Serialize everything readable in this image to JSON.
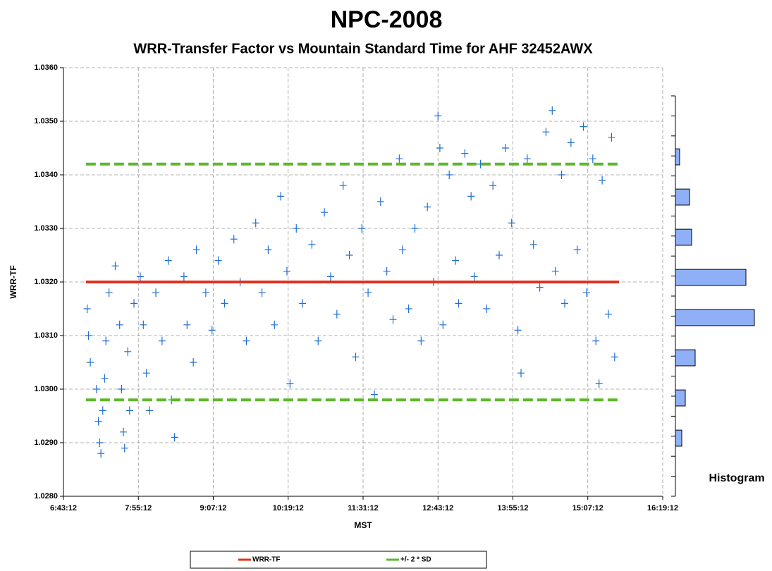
{
  "chart_data": [
    {
      "type": "scatter",
      "title": "NPC-2008",
      "subtitle": "WRR-Transfer Factor vs Mountain Standard Time for AHF 32452AWX",
      "x_label": "MST",
      "y_label": "WRR-TF",
      "xlim": [
        6.72,
        16.32
      ],
      "xticks": [
        {
          "value": 6.72,
          "label": "6:43:12"
        },
        {
          "value": 7.92,
          "label": "7:55:12"
        },
        {
          "value": 9.12,
          "label": "9:07:12"
        },
        {
          "value": 10.32,
          "label": "10:19:12"
        },
        {
          "value": 11.52,
          "label": "11:31:12"
        },
        {
          "value": 12.72,
          "label": "12:43:12"
        },
        {
          "value": 13.92,
          "label": "13:55:12"
        },
        {
          "value": 15.12,
          "label": "15:07:12"
        },
        {
          "value": 16.32,
          "label": "16:19:12"
        }
      ],
      "ylim": [
        1.028,
        1.036
      ],
      "yticks": [
        {
          "value": 1.028,
          "label": "1.0280"
        },
        {
          "value": 1.029,
          "label": "1.0290"
        },
        {
          "value": 1.03,
          "label": "1.0300"
        },
        {
          "value": 1.031,
          "label": "1.0310"
        },
        {
          "value": 1.032,
          "label": "1.0320"
        },
        {
          "value": 1.033,
          "label": "1.0330"
        },
        {
          "value": 1.034,
          "label": "1.0340"
        },
        {
          "value": 1.035,
          "label": "1.0350"
        },
        {
          "value": 1.036,
          "label": "1.0360"
        }
      ],
      "grid": true,
      "points": {
        "color": "#1f6fd1",
        "x": [
          7.1,
          7.12,
          7.15,
          7.25,
          7.28,
          7.3,
          7.32,
          7.35,
          7.38,
          7.4,
          7.45,
          7.55,
          7.62,
          7.65,
          7.68,
          7.7,
          7.75,
          7.78,
          7.85,
          7.95,
          8.0,
          8.05,
          8.1,
          8.2,
          8.3,
          8.4,
          8.45,
          8.5,
          8.65,
          8.7,
          8.8,
          8.85,
          9.0,
          9.1,
          9.2,
          9.3,
          9.45,
          9.55,
          9.65,
          9.8,
          9.9,
          10.0,
          10.1,
          10.2,
          10.3,
          10.35,
          10.45,
          10.55,
          10.7,
          10.8,
          10.9,
          11.0,
          11.1,
          11.2,
          11.3,
          11.4,
          11.5,
          11.6,
          11.7,
          11.8,
          11.9,
          12.0,
          12.1,
          12.15,
          12.25,
          12.35,
          12.45,
          12.55,
          12.65,
          12.72,
          12.75,
          12.8,
          12.9,
          13.0,
          13.05,
          13.15,
          13.25,
          13.3,
          13.4,
          13.5,
          13.6,
          13.7,
          13.8,
          13.9,
          14.0,
          14.05,
          14.15,
          14.25,
          14.35,
          14.45,
          14.55,
          14.6,
          14.7,
          14.75,
          14.85,
          14.95,
          15.05,
          15.1,
          15.2,
          15.25,
          15.3,
          15.35,
          15.45,
          15.5,
          15.55
        ],
        "y": [
          1.0315,
          1.031,
          1.0305,
          1.03,
          1.0294,
          1.029,
          1.0288,
          1.0296,
          1.0302,
          1.0309,
          1.0318,
          1.0323,
          1.0312,
          1.03,
          1.0292,
          1.0289,
          1.0307,
          1.0296,
          1.0316,
          1.0321,
          1.0312,
          1.0303,
          1.0296,
          1.0318,
          1.0309,
          1.0324,
          1.0298,
          1.0291,
          1.0321,
          1.0312,
          1.0305,
          1.0326,
          1.0318,
          1.0311,
          1.0324,
          1.0316,
          1.0328,
          1.032,
          1.0309,
          1.0331,
          1.0318,
          1.0326,
          1.0312,
          1.0336,
          1.0322,
          1.0301,
          1.033,
          1.0316,
          1.0327,
          1.0309,
          1.0333,
          1.0321,
          1.0314,
          1.0338,
          1.0325,
          1.0306,
          1.033,
          1.0318,
          1.0299,
          1.0335,
          1.0322,
          1.0313,
          1.0343,
          1.0326,
          1.0315,
          1.033,
          1.0309,
          1.0334,
          1.032,
          1.0351,
          1.0345,
          1.0312,
          1.034,
          1.0324,
          1.0316,
          1.0344,
          1.0336,
          1.0321,
          1.0342,
          1.0315,
          1.0338,
          1.0325,
          1.0345,
          1.0331,
          1.0311,
          1.0303,
          1.0343,
          1.0327,
          1.0319,
          1.0348,
          1.0352,
          1.0322,
          1.034,
          1.0316,
          1.0346,
          1.0326,
          1.0349,
          1.0318,
          1.0343,
          1.0309,
          1.0301,
          1.0339,
          1.0314,
          1.0347,
          1.0306
        ]
      },
      "reference_lines": [
        {
          "name": "WRR-TF",
          "color": "#e3301c",
          "y": [
            1.032
          ],
          "x_range": [
            7.08,
            15.62
          ]
        },
        {
          "name": "+/- 2 * SD",
          "color": "#5cb82c",
          "dashed": true,
          "y": [
            1.0342,
            1.0298
          ],
          "x_range": [
            7.08,
            15.62
          ]
        }
      ]
    },
    {
      "type": "histogram",
      "title": "Histogram",
      "color": "#8fb0f7",
      "bins": [
        1.02871,
        1.02946,
        1.03021,
        1.03096,
        1.03171,
        1.03246,
        1.03321,
        1.03396,
        1.03471
      ],
      "counts": [
        9,
        14,
        28,
        112,
        100,
        23,
        20,
        6
      ],
      "xlim": [
        0,
        120
      ]
    }
  ]
}
